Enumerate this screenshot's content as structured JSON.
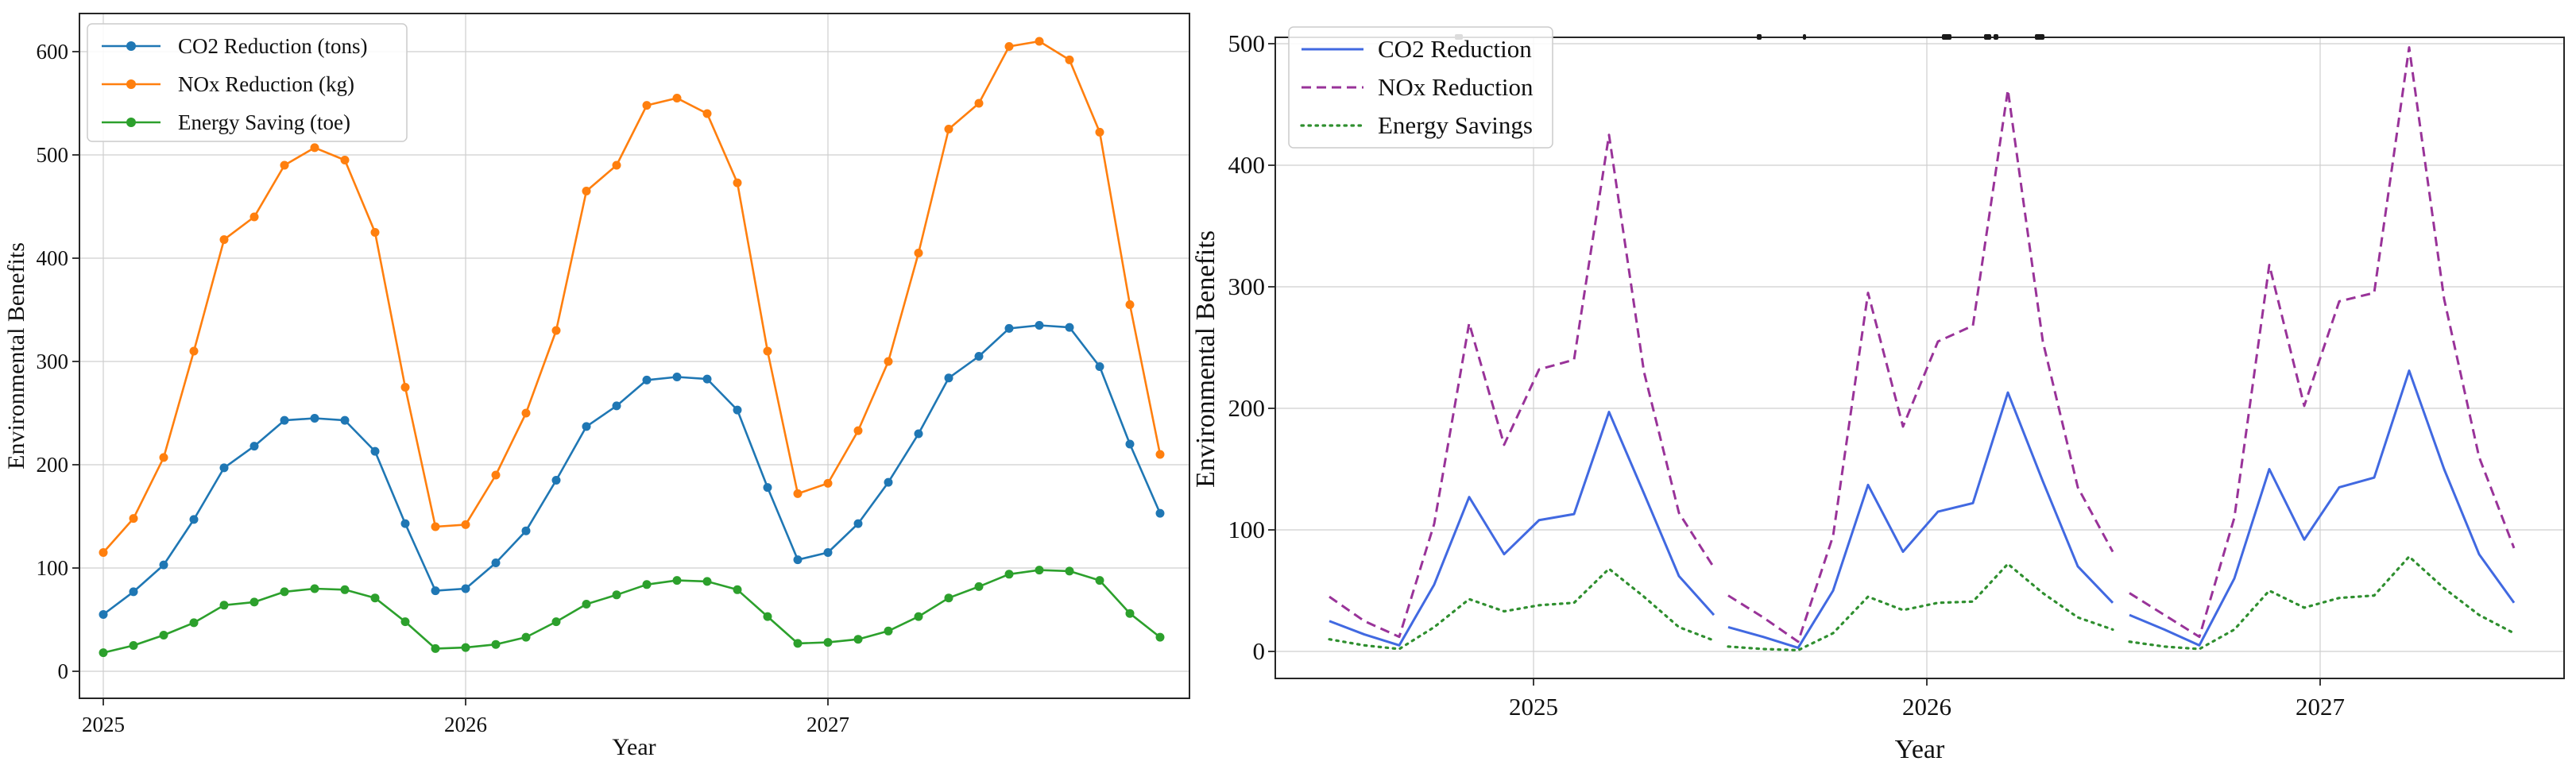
{
  "figure": {
    "background": "#ffffff",
    "description_left": "Monthly environmental benefits line chart with circular markers, Jan 2025 - Dec 2027",
    "description_right": "Monthly environmental benefits line chart drawn as three separate yearly segments with gaps"
  },
  "chart_data": [
    {
      "id": "left-chart",
      "type": "line",
      "title": "",
      "xlabel": "Year",
      "ylabel": "Environmental Benefits",
      "x_tick_labels": [
        "2025",
        "2026",
        "2027"
      ],
      "y_ticks": [
        0,
        100,
        200,
        300,
        400,
        500,
        600
      ],
      "ylim": [
        -25,
        635
      ],
      "grid": true,
      "legend_position": "upper left",
      "marker": "circle",
      "x": [
        "2025-01",
        "2025-02",
        "2025-03",
        "2025-04",
        "2025-05",
        "2025-06",
        "2025-07",
        "2025-08",
        "2025-09",
        "2025-10",
        "2025-11",
        "2025-12",
        "2026-01",
        "2026-02",
        "2026-03",
        "2026-04",
        "2026-05",
        "2026-06",
        "2026-07",
        "2026-08",
        "2026-09",
        "2026-10",
        "2026-11",
        "2026-12",
        "2027-01",
        "2027-02",
        "2027-03",
        "2027-04",
        "2027-05",
        "2027-06",
        "2027-07",
        "2027-08",
        "2027-09",
        "2027-10",
        "2027-11",
        "2027-12"
      ],
      "series": [
        {
          "name": "CO2 Reduction (tons)",
          "color": "#1f77b4",
          "line_style": "solid",
          "marker": "circle",
          "values": [
            55,
            77,
            103,
            147,
            197,
            218,
            243,
            245,
            243,
            213,
            143,
            78,
            80,
            105,
            136,
            185,
            237,
            257,
            282,
            285,
            283,
            253,
            178,
            108,
            115,
            143,
            183,
            230,
            284,
            305,
            332,
            335,
            333,
            295,
            220,
            153
          ]
        },
        {
          "name": "NOx Reduction (kg)",
          "color": "#ff7f0e",
          "line_style": "solid",
          "marker": "circle",
          "values": [
            115,
            148,
            207,
            310,
            418,
            440,
            490,
            507,
            495,
            425,
            275,
            140,
            142,
            190,
            250,
            330,
            465,
            490,
            548,
            555,
            540,
            473,
            310,
            172,
            182,
            233,
            300,
            405,
            525,
            550,
            605,
            610,
            592,
            522,
            355,
            210
          ]
        },
        {
          "name": "Energy Saving (toe)",
          "color": "#2ca02c",
          "line_style": "solid",
          "marker": "circle",
          "values": [
            18,
            25,
            35,
            47,
            64,
            67,
            77,
            80,
            79,
            71,
            48,
            22,
            23,
            26,
            33,
            48,
            65,
            74,
            84,
            88,
            87,
            79,
            53,
            27,
            28,
            31,
            39,
            53,
            71,
            82,
            94,
            98,
            97,
            88,
            56,
            33
          ]
        }
      ]
    },
    {
      "id": "right-chart",
      "type": "line",
      "title": "",
      "xlabel": "Year",
      "ylabel": "Environmental Benefits",
      "x_tick_labels": [
        "2025",
        "2026",
        "2027"
      ],
      "y_ticks": [
        0,
        100,
        200,
        300,
        400,
        500
      ],
      "ylim": [
        -22,
        505
      ],
      "grid": true,
      "legend_position": "upper left",
      "segmented": "three 12-point yearly segments separated by gaps",
      "segment_x_year_ranges": [
        [
          2024.47,
          2025.48
        ],
        [
          2025.51,
          2026.52
        ],
        [
          2026.56,
          2027.57
        ]
      ],
      "series": [
        {
          "name": "CO2 Reduction",
          "color": "#4169e1",
          "line_style": "solid",
          "segments": [
            [
              25,
              14,
              5,
              55,
              127,
              80,
              108,
              113,
              197,
              130,
              62,
              30
            ],
            [
              20,
              12,
              3,
              50,
              137,
              82,
              115,
              122,
              213,
              140,
              70,
              40
            ],
            [
              30,
              18,
              5,
              60,
              150,
              92,
              135,
              143,
              231,
              150,
              80,
              40
            ]
          ]
        },
        {
          "name": "NOx Reduction",
          "color": "#993399",
          "line_style": "dashed",
          "segments": [
            [
              45,
              25,
              12,
              105,
              270,
              170,
              232,
              240,
              425,
              230,
              114,
              69
            ],
            [
              46,
              28,
              8,
              95,
              295,
              185,
              255,
              268,
              462,
              255,
              135,
              82
            ],
            [
              48,
              30,
              12,
              110,
              318,
              202,
              288,
              295,
              497,
              290,
              160,
              85
            ]
          ]
        },
        {
          "name": "Energy Savings",
          "color": "#2f8f2f",
          "line_style": "dotted",
          "segments": [
            [
              10,
              5,
              2,
              20,
              43,
              33,
              38,
              40,
              68,
              45,
              20,
              9
            ],
            [
              4,
              2,
              1,
              15,
              45,
              34,
              40,
              41,
              72,
              48,
              28,
              18
            ],
            [
              8,
              4,
              2,
              18,
              50,
              36,
              44,
              46,
              78,
              52,
              30,
              15
            ]
          ]
        }
      ],
      "top_edge_fragments": [
        [
          1831,
          10
        ],
        [
          2211,
          6
        ],
        [
          2269,
          4
        ],
        [
          2444,
          12
        ],
        [
          2497,
          9
        ],
        [
          2509,
          6
        ],
        [
          2561,
          12
        ]
      ]
    }
  ]
}
